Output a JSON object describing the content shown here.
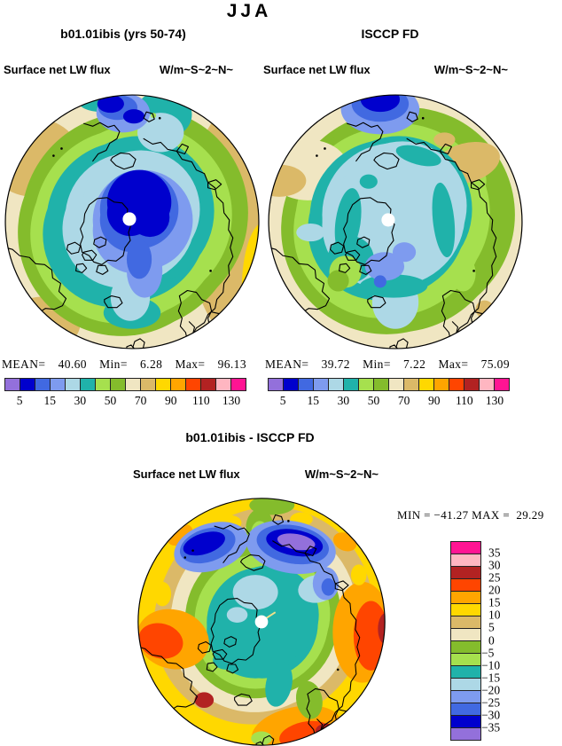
{
  "header": {
    "title": "JJA"
  },
  "panels": {
    "model": {
      "title": "b01.01ibis (yrs 50-74)",
      "var_label": "Surface net LW flux",
      "units_label": "W/m~S~2~N~",
      "stats": {
        "mean_label": "MEAN=",
        "mean": "40.60",
        "min_label": "Min=",
        "min": "6.28",
        "max_label": "Max=",
        "max": "96.13"
      },
      "colorbar_ticks": [
        "5",
        "15",
        "30",
        "50",
        "70",
        "90",
        "110",
        "130"
      ]
    },
    "obs": {
      "title": "ISCCP FD",
      "var_label": "Surface net LW flux",
      "units_label": "W/m~S~2~N~",
      "stats": {
        "mean_label": "MEAN=",
        "mean": "39.72",
        "min_label": "Min=",
        "min": "7.22",
        "max_label": "Max=",
        "max": "75.09"
      },
      "colorbar_ticks": [
        "5",
        "15",
        "30",
        "50",
        "70",
        "90",
        "110",
        "130"
      ]
    },
    "diff": {
      "title": "b01.01ibis - ISCCP FD",
      "var_label": "Surface net LW flux",
      "units_label": "W/m~S~2~N~",
      "minmax_label": "MIN = −41.27 MAX =  29.29",
      "colorbar_ticks": [
        "35",
        "30",
        "25",
        "20",
        "15",
        "10",
        "5",
        "0",
        "−5",
        "−10",
        "−15",
        "−20",
        "−25",
        "−30",
        "−35"
      ]
    }
  },
  "palette": [
    "#9370DB",
    "#0000CD",
    "#4169E1",
    "#7E9BEF",
    "#ADD8E6",
    "#20B2AA",
    "#A6E04E",
    "#84BC2C",
    "#F0E6C2",
    "#DBB968",
    "#FFD800",
    "#FFA500",
    "#FF4500",
    "#B22222",
    "#FFB6C1",
    "#FF1493"
  ],
  "chart_data": {
    "type": "heatmap",
    "title": "JJA",
    "projection": "north_polar_stereographic",
    "palette_low_to_high": [
      "#9370DB",
      "#0000CD",
      "#4169E1",
      "#7E9BEF",
      "#ADD8E6",
      "#20B2AA",
      "#A6E04E",
      "#84BC2C",
      "#F0E6C2",
      "#DBB968",
      "#FFD800",
      "#FFA500",
      "#FF4500",
      "#B22222",
      "#FFB6C1",
      "#FF1493"
    ],
    "panels": [
      {
        "name": "b01.01ibis (yrs 50-74)",
        "variable": "Surface net LW flux",
        "units": "W/m~S~2~N~",
        "mean": 40.6,
        "min": 6.28,
        "max": 96.13,
        "contour_levels": [
          5,
          10,
          15,
          20,
          30,
          40,
          50,
          60,
          70,
          80,
          90,
          100,
          110,
          120,
          130
        ],
        "labeled_levels": [
          5,
          15,
          30,
          50,
          70,
          90,
          110,
          130
        ],
        "colorbar": "horizontal"
      },
      {
        "name": "ISCCP FD",
        "variable": "Surface net LW flux",
        "units": "W/m~S~2~N~",
        "mean": 39.72,
        "min": 7.22,
        "max": 75.09,
        "contour_levels": [
          5,
          10,
          15,
          20,
          30,
          40,
          50,
          60,
          70,
          80,
          90,
          100,
          110,
          120,
          130
        ],
        "labeled_levels": [
          5,
          15,
          30,
          50,
          70,
          90,
          110,
          130
        ],
        "colorbar": "horizontal"
      },
      {
        "name": "b01.01ibis - ISCCP FD",
        "variable": "Surface net LW flux",
        "units": "W/m~S~2~N~",
        "min": -41.27,
        "max": 29.29,
        "contour_levels": [
          -35,
          -30,
          -25,
          -20,
          -15,
          -10,
          -5,
          0,
          5,
          10,
          15,
          20,
          25,
          30,
          35
        ],
        "labeled_levels": [
          35,
          30,
          25,
          20,
          15,
          10,
          5,
          0,
          -5,
          -10,
          -15,
          -20,
          -25,
          -30,
          -35
        ],
        "colorbar": "vertical"
      }
    ]
  }
}
